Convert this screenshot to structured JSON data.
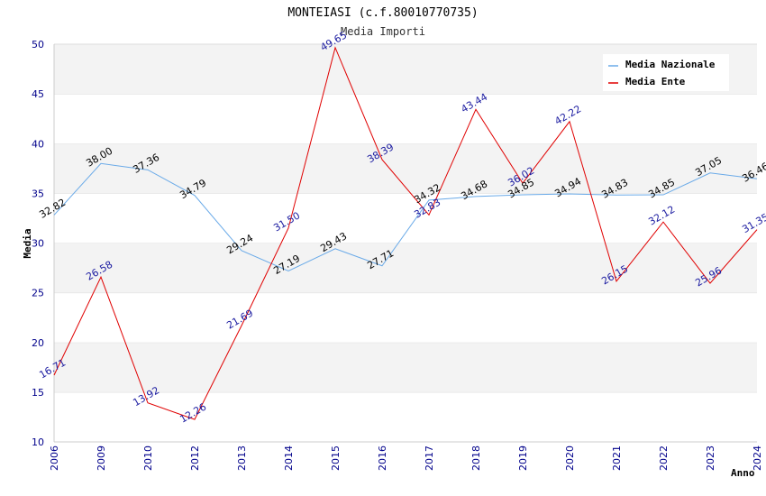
{
  "chart_data": {
    "type": "line",
    "title": "MONTEIASI (c.f.80010770735)",
    "subtitle": "Media Importi",
    "xlabel": "Anno",
    "ylabel": "Media",
    "ylim": [
      10,
      50
    ],
    "yticks": [
      10,
      15,
      20,
      25,
      30,
      35,
      40,
      45,
      50
    ],
    "grid": "horizontal-bands",
    "legend_position": "top-right",
    "categories": [
      "2006",
      "2009",
      "2010",
      "2012",
      "2013",
      "2014",
      "2015",
      "2016",
      "2017",
      "2018",
      "2019",
      "2020",
      "2021",
      "2022",
      "2023",
      "2024"
    ],
    "series": [
      {
        "name": "Media Nazionale",
        "color": "#6aaae8",
        "values": [
          32.82,
          38.0,
          37.36,
          34.79,
          29.24,
          27.19,
          29.43,
          27.71,
          34.32,
          34.68,
          34.85,
          34.94,
          34.83,
          34.85,
          37.05,
          36.46
        ],
        "labels": [
          "32.82",
          "38.00",
          "37.36",
          "34.79",
          "29.24",
          "27.19",
          "29.43",
          "27.71",
          "34.32",
          "34.68",
          "34.85",
          "34.94",
          "34.83",
          "34.85",
          "37.05",
          "36.46"
        ]
      },
      {
        "name": "Media Ente",
        "color": "#e00000",
        "values": [
          16.71,
          26.58,
          13.92,
          12.26,
          21.69,
          31.5,
          49.65,
          38.39,
          32.83,
          43.44,
          36.02,
          42.22,
          26.15,
          32.12,
          25.96,
          31.35
        ],
        "labels": [
          "16.71",
          "26.58",
          "13.92",
          "12.26",
          "21.69",
          "31.50",
          "49.65",
          "38.39",
          "32.83",
          "43.44",
          "36.02",
          "42.22",
          "26.15",
          "32.12",
          "25.96",
          "31.35"
        ]
      }
    ]
  }
}
